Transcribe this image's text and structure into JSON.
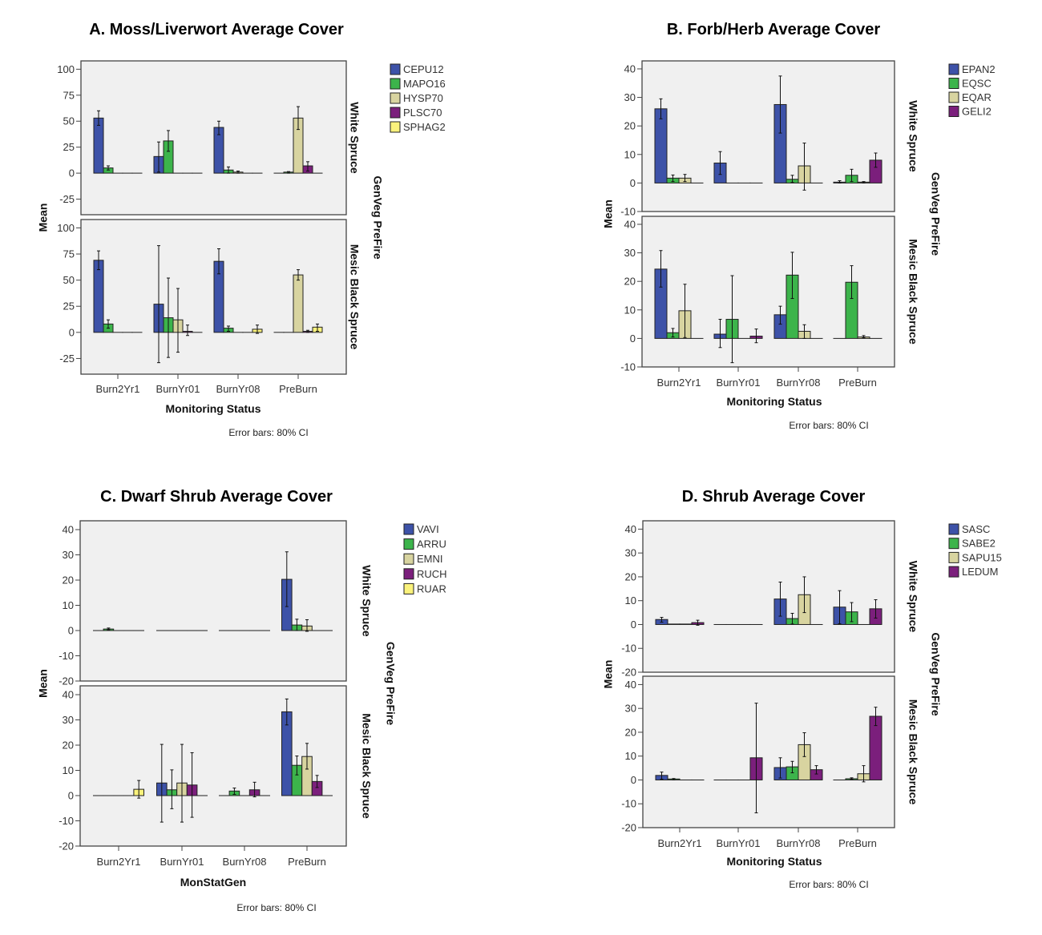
{
  "chart_data": [
    {
      "type": "bar",
      "title": "A. Moss/Liverwort Average Cover",
      "xlabel": "Monitoring Status",
      "ylabel": "Mean",
      "facet_label": "GenVeg PreFire",
      "facets": [
        "White Spruce",
        "Mesic Black Spruce"
      ],
      "categories": [
        "Burn2Yr1",
        "BurnYr01",
        "BurnYr08",
        "PreBurn"
      ],
      "ylim": [
        -40,
        108
      ],
      "yticks": [
        -25,
        0,
        25,
        50,
        75,
        100
      ],
      "note": "Error bars: 80% CI",
      "legend": "right",
      "background": "#f0f0f0",
      "series": [
        {
          "name": "CEPU12",
          "color": "#3d52a8",
          "values": [
            [
              53,
              16,
              44,
              0
            ],
            [
              69,
              27,
              68,
              0
            ]
          ],
          "ci": [
            [
              [
                46,
                60
              ],
              [
                1,
                30
              ],
              [
                37,
                50
              ],
              null
            ],
            [
              [
                60,
                78
              ],
              [
                -29,
                83
              ],
              [
                56,
                80
              ],
              null
            ]
          ]
        },
        {
          "name": "MAPO16",
          "color": "#3cb44b",
          "values": [
            [
              5,
              31,
              3,
              1
            ],
            [
              8,
              14,
              4,
              0
            ]
          ],
          "ci": [
            [
              [
                3,
                7
              ],
              [
                21,
                41
              ],
              [
                0,
                6
              ],
              [
                0,
                1.5
              ]
            ],
            [
              [
                4,
                12
              ],
              [
                -24,
                52
              ],
              [
                1,
                6
              ],
              null
            ]
          ]
        },
        {
          "name": "HYSP70",
          "color": "#d8d4a0",
          "values": [
            [
              0,
              0,
              1,
              53
            ],
            [
              0,
              12,
              0,
              55
            ]
          ],
          "ci": [
            [
              null,
              null,
              [
                0,
                2
              ],
              [
                42,
                64
              ]
            ],
            [
              null,
              [
                -19,
                42
              ],
              null,
              [
                50,
                60
              ]
            ]
          ]
        },
        {
          "name": "PLSC70",
          "color": "#7b1f7c",
          "values": [
            [
              0,
              0,
              0,
              7
            ],
            [
              0,
              1,
              0,
              1
            ]
          ],
          "ci": [
            [
              null,
              null,
              null,
              [
                2,
                11
              ]
            ],
            [
              null,
              [
                -3,
                7
              ],
              null,
              [
                0,
                2
              ]
            ]
          ]
        },
        {
          "name": "SPHAG2",
          "color": "#faf27c",
          "values": [
            [
              0,
              0,
              0,
              0
            ],
            [
              0,
              0,
              3,
              5
            ]
          ],
          "ci": [
            [
              null,
              null,
              null,
              null
            ],
            [
              null,
              null,
              [
                -1,
                7
              ],
              [
                1,
                8
              ]
            ]
          ]
        }
      ]
    },
    {
      "type": "bar",
      "title": "B. Forb/Herb Average Cover",
      "xlabel": "Monitoring Status",
      "ylabel": "Mean",
      "facet_label": "GenVeg PreFire",
      "facets": [
        "White Spruce",
        "Mesic Black Spruce"
      ],
      "categories": [
        "Burn2Yr1",
        "BurnYr01",
        "BurnYr08",
        "PreBurn"
      ],
      "ylim": [
        -10,
        42.8
      ],
      "yticks": [
        -10,
        0,
        10,
        20,
        30,
        40
      ],
      "note": "Error bars: 80% CI",
      "legend": "right",
      "background": "#f0f0f0",
      "series": [
        {
          "name": "EPAN2",
          "color": "#3d52a8",
          "values": [
            [
              26,
              7,
              27.5,
              0.3
            ],
            [
              24.3,
              1.5,
              8.3,
              0
            ]
          ],
          "ci": [
            [
              [
                22.5,
                29.5
              ],
              [
                3,
                11
              ],
              [
                17.5,
                37.5
              ],
              [
                0,
                0.8
              ]
            ],
            [
              [
                18,
                30.8
              ],
              [
                -3.2,
                6.7
              ],
              [
                5,
                11.3
              ],
              null
            ]
          ]
        },
        {
          "name": "EQSC",
          "color": "#3cb44b",
          "values": [
            [
              1.7,
              0,
              1.3,
              2.7
            ],
            [
              2,
              6.7,
              22.2,
              19.7
            ]
          ],
          "ci": [
            [
              [
                0.5,
                2.8
              ],
              null,
              [
                0.2,
                2.7
              ],
              [
                0.5,
                4.8
              ]
            ],
            [
              [
                0.5,
                3.5
              ],
              [
                -8.5,
                22
              ],
              [
                14,
                30.2
              ],
              [
                14,
                25.5
              ]
            ]
          ]
        },
        {
          "name": "EQAR",
          "color": "#d8d4a0",
          "values": [
            [
              1.7,
              0,
              6,
              0.3
            ],
            [
              9.7,
              0,
              2.5,
              0.5
            ]
          ],
          "ci": [
            [
              [
                0.5,
                3
              ],
              null,
              [
                -2.5,
                14
              ],
              [
                0,
                0.5
              ]
            ],
            [
              [
                0.3,
                19
              ],
              null,
              [
                0,
                4.8
              ],
              [
                0.2,
                1
              ]
            ]
          ]
        },
        {
          "name": "GELI2",
          "color": "#7b1f7c",
          "values": [
            [
              0,
              0,
              0,
              8
            ],
            [
              0,
              0.8,
              0,
              0
            ]
          ],
          "ci": [
            [
              null,
              null,
              null,
              [
                5.5,
                10.5
              ]
            ],
            [
              null,
              [
                -1.5,
                3.3
              ],
              null,
              null
            ]
          ]
        }
      ]
    },
    {
      "type": "bar",
      "title": "C. Dwarf Shrub Average Cover",
      "xlabel": "MonStatGen",
      "ylabel": "Mean",
      "facet_label": "GenVeg PreFire",
      "facets": [
        "White Spruce",
        "Mesic Black Spruce"
      ],
      "categories": [
        "Burn2Yr1",
        "BurnYr01",
        "BurnYr08",
        "PreBurn"
      ],
      "ylim": [
        -20,
        43.5
      ],
      "yticks": [
        -20,
        -10,
        0,
        10,
        20,
        30,
        40
      ],
      "note": "Error bars: 80% CI",
      "legend": "right",
      "background": "#f0f0f0",
      "series": [
        {
          "name": "VAVI",
          "color": "#3d52a8",
          "values": [
            [
              0,
              0,
              0,
              20.3
            ],
            [
              0,
              5,
              0,
              33.2
            ]
          ],
          "ci": [
            [
              null,
              null,
              null,
              [
                9.5,
                31.2
              ]
            ],
            [
              null,
              [
                -10.5,
                20.3
              ],
              null,
              [
                28,
                38.3
              ]
            ]
          ]
        },
        {
          "name": "ARRU",
          "color": "#3cb44b",
          "values": [
            [
              0.6,
              0,
              0,
              2.2
            ],
            [
              0,
              2.3,
              1.8,
              12
            ]
          ],
          "ci": [
            [
              [
                0.3,
                1
              ],
              null,
              null,
              [
                0,
                4.5
              ]
            ],
            [
              null,
              [
                -5.2,
                10.2
              ],
              [
                0.5,
                3
              ],
              [
                8.2,
                15.7
              ]
            ]
          ]
        },
        {
          "name": "EMNI",
          "color": "#d8d4a0",
          "values": [
            [
              0,
              0,
              0,
              1.8
            ],
            [
              0,
              5,
              0,
              15.5
            ]
          ],
          "ci": [
            [
              null,
              null,
              null,
              [
                -0.3,
                4.3
              ]
            ],
            [
              null,
              [
                -10.5,
                20.3
              ],
              null,
              [
                10.5,
                20.7
              ]
            ]
          ]
        },
        {
          "name": "RUCH",
          "color": "#7b1f7c",
          "values": [
            [
              0,
              0,
              0,
              0
            ],
            [
              0,
              4.2,
              2.3,
              5.6
            ]
          ],
          "ci": [
            [
              null,
              null,
              null,
              null
            ],
            [
              null,
              [
                -8.6,
                17
              ],
              [
                -0.5,
                5.3
              ],
              [
                3.2,
                8
              ]
            ]
          ]
        },
        {
          "name": "RUAR",
          "color": "#faf27c",
          "values": [
            [
              0,
              0,
              0,
              0
            ],
            [
              2.5,
              0,
              0,
              0
            ]
          ],
          "ci": [
            [
              null,
              null,
              null,
              null
            ],
            [
              [
                -1,
                6
              ],
              null,
              null,
              null
            ]
          ]
        }
      ]
    },
    {
      "type": "bar",
      "title": "D. Shrub Average Cover",
      "xlabel": "Monitoring Status",
      "ylabel": "Mean",
      "facet_label": "GenVeg PreFire",
      "facets": [
        "White Spruce",
        "Mesic Black Spruce"
      ],
      "categories": [
        "Burn2Yr1",
        "BurnYr01",
        "BurnYr08",
        "PreBurn"
      ],
      "ylim": [
        -20,
        43.5
      ],
      "yticks": [
        -20,
        -10,
        0,
        10,
        20,
        30,
        40
      ],
      "note": "Error bars: 80% CI",
      "legend": "right",
      "background": "#f0f0f0",
      "series": [
        {
          "name": "SASC",
          "color": "#3d52a8",
          "values": [
            [
              2.1,
              0,
              10.7,
              7.3
            ],
            [
              1.9,
              0,
              5.2,
              0
            ]
          ],
          "ci": [
            [
              [
                1,
                3
              ],
              null,
              [
                3.5,
                17.8
              ],
              [
                0.3,
                14.2
              ]
            ],
            [
              [
                0.3,
                3.3
              ],
              null,
              [
                0.8,
                9.3
              ],
              null
            ]
          ]
        },
        {
          "name": "SABE2",
          "color": "#3cb44b",
          "values": [
            [
              0.2,
              0,
              2.5,
              5.3
            ],
            [
              0.4,
              0,
              5.5,
              0.5
            ]
          ],
          "ci": [
            [
              null,
              null,
              [
                0.2,
                4.7
              ],
              [
                1.2,
                9.2
              ]
            ],
            [
              [
                0,
                0.6
              ],
              null,
              [
                3,
                7.8
              ],
              [
                0.2,
                0.9
              ]
            ]
          ]
        },
        {
          "name": "SAPU15",
          "color": "#d8d4a0",
          "values": [
            [
              0.2,
              0,
              12.5,
              0
            ],
            [
              0,
              0,
              14.8,
              2.6
            ]
          ],
          "ci": [
            [
              null,
              null,
              [
                5,
                20
              ],
              null
            ],
            [
              null,
              null,
              [
                9.8,
                19.8
              ],
              [
                -0.8,
                6
              ]
            ]
          ]
        },
        {
          "name": "LEDUM",
          "color": "#7b1f7c",
          "values": [
            [
              0.8,
              0,
              0,
              6.6
            ],
            [
              0,
              9.3,
              4.3,
              26.7
            ]
          ],
          "ci": [
            [
              [
                -0.3,
                1.8
              ],
              null,
              null,
              [
                2.7,
                10.4
              ]
            ],
            [
              null,
              [
                -13.8,
                32.2
              ],
              [
                2.5,
                6
              ],
              [
                22.8,
                30.5
              ]
            ]
          ]
        }
      ]
    }
  ]
}
